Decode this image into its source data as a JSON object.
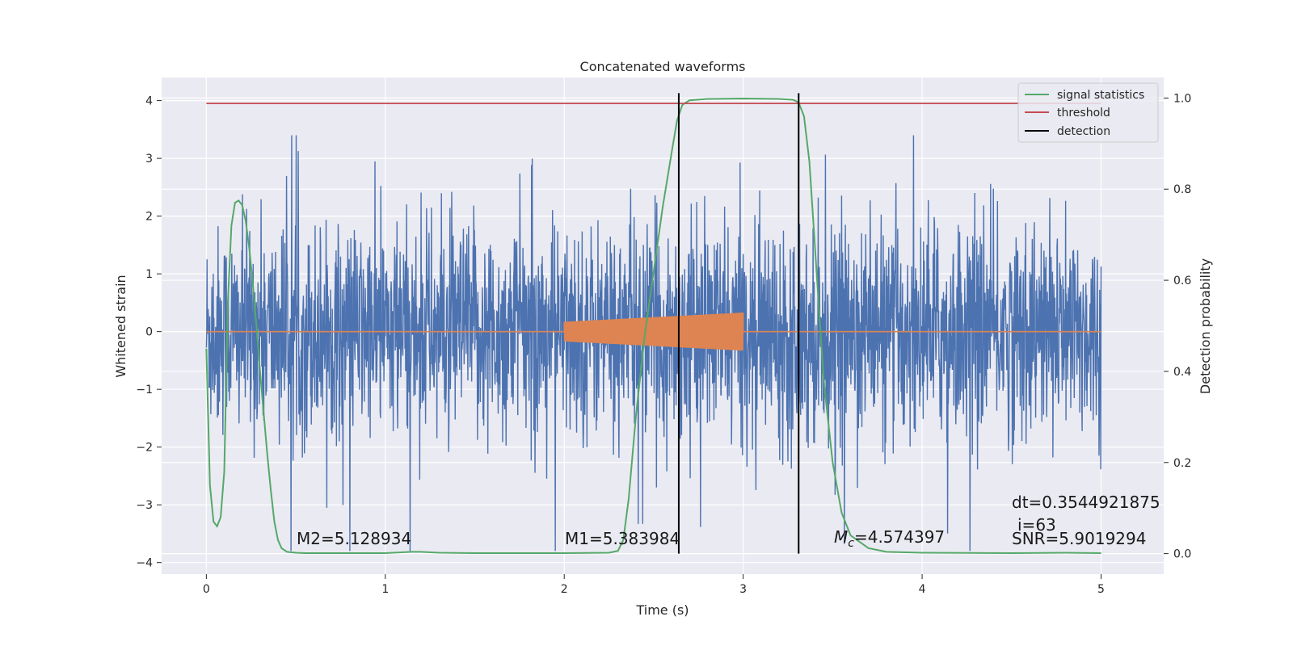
{
  "chart_data": {
    "type": "line",
    "title": "Concatenated waveforms",
    "xlabel": "Time (s)",
    "ylabel": "Whitened strain",
    "ylabel_right": "Detection probability",
    "xlim": [
      -0.25,
      5.35
    ],
    "ylim": [
      -4.2,
      4.4
    ],
    "ylim_right": [
      -0.045,
      1.045
    ],
    "x_ticks": [
      0,
      1,
      2,
      3,
      4,
      5
    ],
    "x_tick_labels": [
      "0",
      "1",
      "2",
      "3",
      "4",
      "5"
    ],
    "y_ticks": [
      -4,
      -3,
      -2,
      -1,
      0,
      1,
      2,
      3,
      4
    ],
    "y_tick_labels": [
      "−4",
      "−3",
      "−2",
      "−1",
      "0",
      "1",
      "2",
      "3",
      "4"
    ],
    "y2_ticks": [
      0.0,
      0.2,
      0.4,
      0.6,
      0.8,
      1.0
    ],
    "y2_tick_labels": [
      "0.0",
      "0.2",
      "0.4",
      "0.6",
      "0.8",
      "1.0"
    ],
    "grid": true,
    "legend_position": "top-right",
    "colors": {
      "strain": "#4c72b0",
      "injection": "#dd8452",
      "statistics": "#55a868",
      "threshold": "#c44e52",
      "detection": "#000000",
      "background": "#eaeaf2",
      "grid": "#ffffff"
    },
    "series": [
      {
        "name": "signal statistics",
        "axis": "right",
        "x": [
          0,
          0.02,
          0.04,
          0.06,
          0.08,
          0.1,
          0.12,
          0.14,
          0.16,
          0.18,
          0.2,
          0.22,
          0.24,
          0.26,
          0.28,
          0.3,
          0.32,
          0.34,
          0.36,
          0.38,
          0.4,
          0.42,
          0.45,
          0.5,
          0.55,
          0.6,
          0.7,
          1.0,
          1.15,
          1.2,
          1.3,
          1.5,
          2.0,
          2.25,
          2.3,
          2.33,
          2.36,
          2.4,
          2.45,
          2.5,
          2.55,
          2.6,
          2.63,
          2.66,
          2.7,
          2.8,
          3.0,
          3.2,
          3.28,
          3.31,
          3.34,
          3.37,
          3.4,
          3.45,
          3.5,
          3.55,
          3.6,
          3.7,
          3.8,
          4.0,
          4.5,
          4.8,
          5.0
        ],
        "y": [
          0.45,
          0.15,
          0.07,
          0.06,
          0.08,
          0.18,
          0.55,
          0.72,
          0.77,
          0.775,
          0.765,
          0.73,
          0.67,
          0.59,
          0.5,
          0.4,
          0.31,
          0.22,
          0.14,
          0.07,
          0.03,
          0.012,
          0.004,
          0.002,
          0.001,
          0.001,
          0.001,
          0.001,
          0.004,
          0.004,
          0.002,
          0.001,
          0.001,
          0.002,
          0.006,
          0.03,
          0.12,
          0.3,
          0.48,
          0.62,
          0.76,
          0.88,
          0.95,
          0.985,
          0.995,
          0.998,
          0.999,
          0.998,
          0.996,
          0.99,
          0.96,
          0.86,
          0.68,
          0.38,
          0.2,
          0.09,
          0.04,
          0.012,
          0.004,
          0.002,
          0.001,
          0.002,
          0.001
        ]
      },
      {
        "name": "threshold",
        "axis": "right",
        "x": [
          0,
          5
        ],
        "y": [
          0.988,
          0.988
        ]
      },
      {
        "name": "detection",
        "axis": "right",
        "x": [
          2.64,
          3.31
        ],
        "y_range": [
          0.0,
          1.0
        ]
      }
    ],
    "strain_description": "whitened noise strain from 0 to 5 s, spanning roughly -3.8 to 3.4",
    "injection": {
      "name": "injected waveform",
      "x_range": [
        2.0,
        3.0
      ],
      "amplitude_start": 0.17,
      "amplitude_end": 0.33
    },
    "legend": [
      "signal statistics",
      "threshold",
      "detection"
    ],
    "annotations": {
      "m2": "M2=5.128934",
      "m1": "M1=5.383984",
      "mc_symbol": "M",
      "mc_subscript": "c",
      "mc_value": "=4.574397",
      "dt": "dt=0.3544921875",
      "i": "i=63",
      "snr": "SNR=5.9019294"
    }
  }
}
